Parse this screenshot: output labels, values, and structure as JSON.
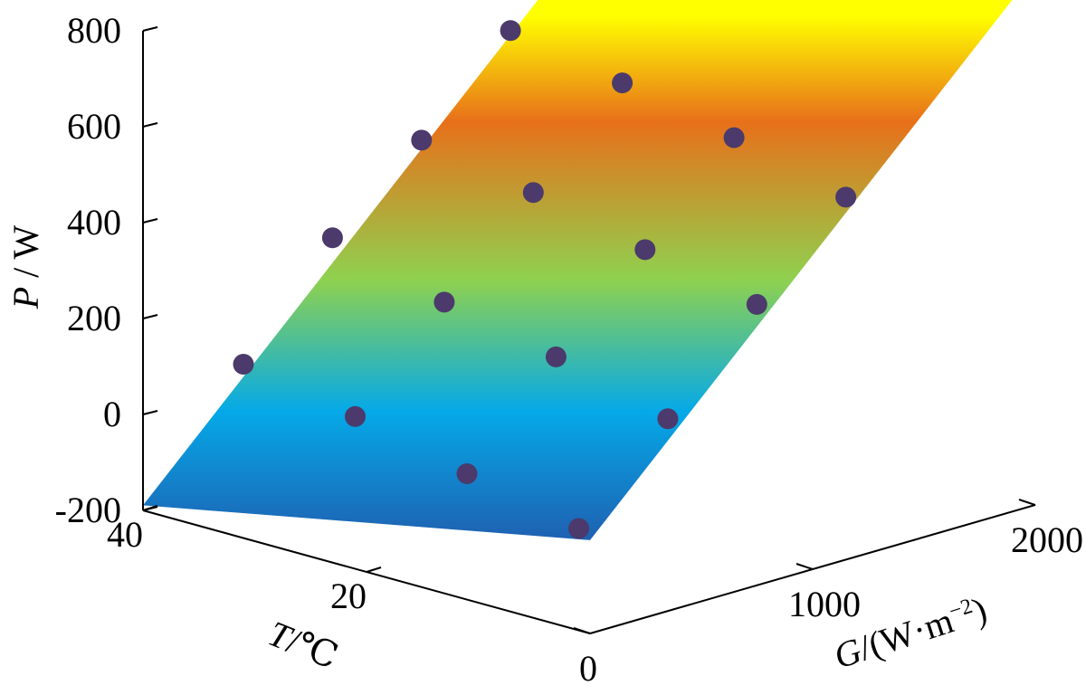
{
  "chart_data": {
    "type": "scatter",
    "variant": "3d-surface-with-points",
    "x_axis": {
      "label_var": "G",
      "label_unit": "/(W·m",
      "label_exp": "−2",
      "label_close": ")",
      "range": [
        0,
        2000
      ],
      "ticks": [
        "0",
        "1000",
        "2000"
      ]
    },
    "y_axis": {
      "label_var": "T",
      "label_unit": "/℃",
      "range": [
        0,
        40
      ],
      "ticks": [
        "20",
        "40"
      ]
    },
    "z_axis": {
      "label_var": "P",
      "label_unit": " / W",
      "range": [
        -200,
        800
      ],
      "ticks": [
        "-200",
        "0",
        "200",
        "400",
        "600",
        "800"
      ]
    },
    "surface_colormap": [
      "#1f5fb0",
      "#05a9e8",
      "#8fd14f",
      "#e8701a",
      "#ffff00"
    ],
    "points": [
      {
        "G": 200,
        "T": 35,
        "P": 110
      },
      {
        "G": 200,
        "T": 25,
        "P": 65
      },
      {
        "G": 200,
        "T": 15,
        "P": 10
      },
      {
        "G": 200,
        "T": 5,
        "P": -40
      },
      {
        "G": 600,
        "T": 35,
        "P": 320
      },
      {
        "G": 600,
        "T": 25,
        "P": 250
      },
      {
        "G": 600,
        "T": 15,
        "P": 200
      },
      {
        "G": 600,
        "T": 5,
        "P": 135
      },
      {
        "G": 1000,
        "T": 35,
        "P": 470
      },
      {
        "G": 1000,
        "T": 25,
        "P": 425
      },
      {
        "G": 1000,
        "T": 15,
        "P": 370
      },
      {
        "G": 1000,
        "T": 5,
        "P": 320
      },
      {
        "G": 1400,
        "T": 35,
        "P": 645
      },
      {
        "G": 1400,
        "T": 25,
        "P": 600
      },
      {
        "G": 1400,
        "T": 15,
        "P": 550
      },
      {
        "G": 1400,
        "T": 5,
        "P": 490
      }
    ]
  }
}
